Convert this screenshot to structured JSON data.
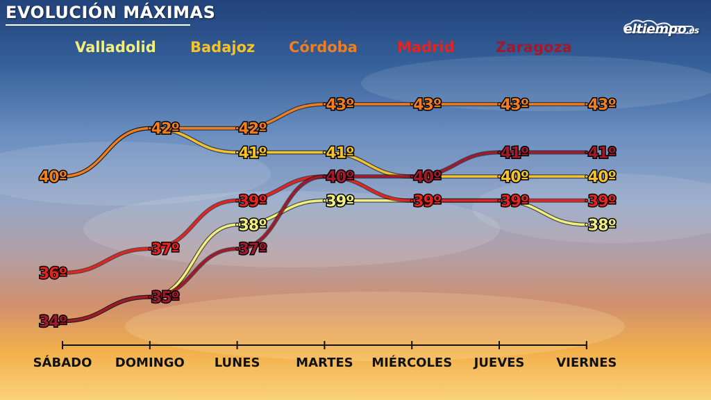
{
  "header": {
    "title": "EVOLUCIÓN MÁXIMAS"
  },
  "logo": {
    "text": "eltiempo",
    "suffix": ".es"
  },
  "chart_data": {
    "type": "line",
    "categories": [
      "SÁBADO",
      "DOMINGO",
      "LUNES",
      "MARTES",
      "MIÉRCOLES",
      "JUEVES",
      "VIERNES"
    ],
    "unit": "º",
    "series": [
      {
        "name": "Valladolid",
        "color": "#f3f07a",
        "values": [
          34,
          35,
          38,
          39,
          39,
          39,
          38
        ]
      },
      {
        "name": "Badajoz",
        "color": "#f6c22a",
        "values": [
          40,
          42,
          41,
          41,
          40,
          40,
          40
        ]
      },
      {
        "name": "Córdoba",
        "color": "#f07d1e",
        "values": [
          40,
          42,
          42,
          43,
          43,
          43,
          43
        ]
      },
      {
        "name": "Madrid",
        "color": "#e8221f",
        "values": [
          36,
          37,
          39,
          40,
          39,
          39,
          39
        ]
      },
      {
        "name": "Zaragoza",
        "color": "#a3182a",
        "values": [
          34,
          35,
          37,
          40,
          40,
          41,
          41
        ]
      }
    ],
    "labels": [
      {
        "series": 4,
        "i": 0,
        "text": "34º"
      },
      {
        "series": 3,
        "i": 0,
        "text": "36º"
      },
      {
        "series": 2,
        "i": 0,
        "text": "40º"
      },
      {
        "series": 2,
        "i": 1,
        "text": "42º"
      },
      {
        "series": 3,
        "i": 1,
        "text": "37º"
      },
      {
        "series": 4,
        "i": 1,
        "text": "35º"
      },
      {
        "series": 2,
        "i": 2,
        "text": "42º"
      },
      {
        "series": 1,
        "i": 2,
        "text": "41º"
      },
      {
        "series": 3,
        "i": 2,
        "text": "39º"
      },
      {
        "series": 0,
        "i": 2,
        "text": "38º"
      },
      {
        "series": 4,
        "i": 2,
        "text": "37º"
      },
      {
        "series": 2,
        "i": 3,
        "text": "43º"
      },
      {
        "series": 1,
        "i": 3,
        "text": "41º"
      },
      {
        "series": 4,
        "i": 3,
        "text": "40º"
      },
      {
        "series": 0,
        "i": 3,
        "text": "39º"
      },
      {
        "series": 2,
        "i": 4,
        "text": "43º"
      },
      {
        "series": 4,
        "i": 4,
        "text": "40º"
      },
      {
        "series": 3,
        "i": 4,
        "text": "39º"
      },
      {
        "series": 2,
        "i": 5,
        "text": "43º"
      },
      {
        "series": 4,
        "i": 5,
        "text": "41º"
      },
      {
        "series": 1,
        "i": 5,
        "text": "40º"
      },
      {
        "series": 3,
        "i": 5,
        "text": "39º"
      },
      {
        "series": 2,
        "i": 6,
        "text": "43º"
      },
      {
        "series": 4,
        "i": 6,
        "text": "41º"
      },
      {
        "series": 1,
        "i": 6,
        "text": "40º"
      },
      {
        "series": 3,
        "i": 6,
        "text": "39º"
      },
      {
        "series": 0,
        "i": 6,
        "text": "38º"
      }
    ],
    "grid": false,
    "legend_position": "top"
  }
}
